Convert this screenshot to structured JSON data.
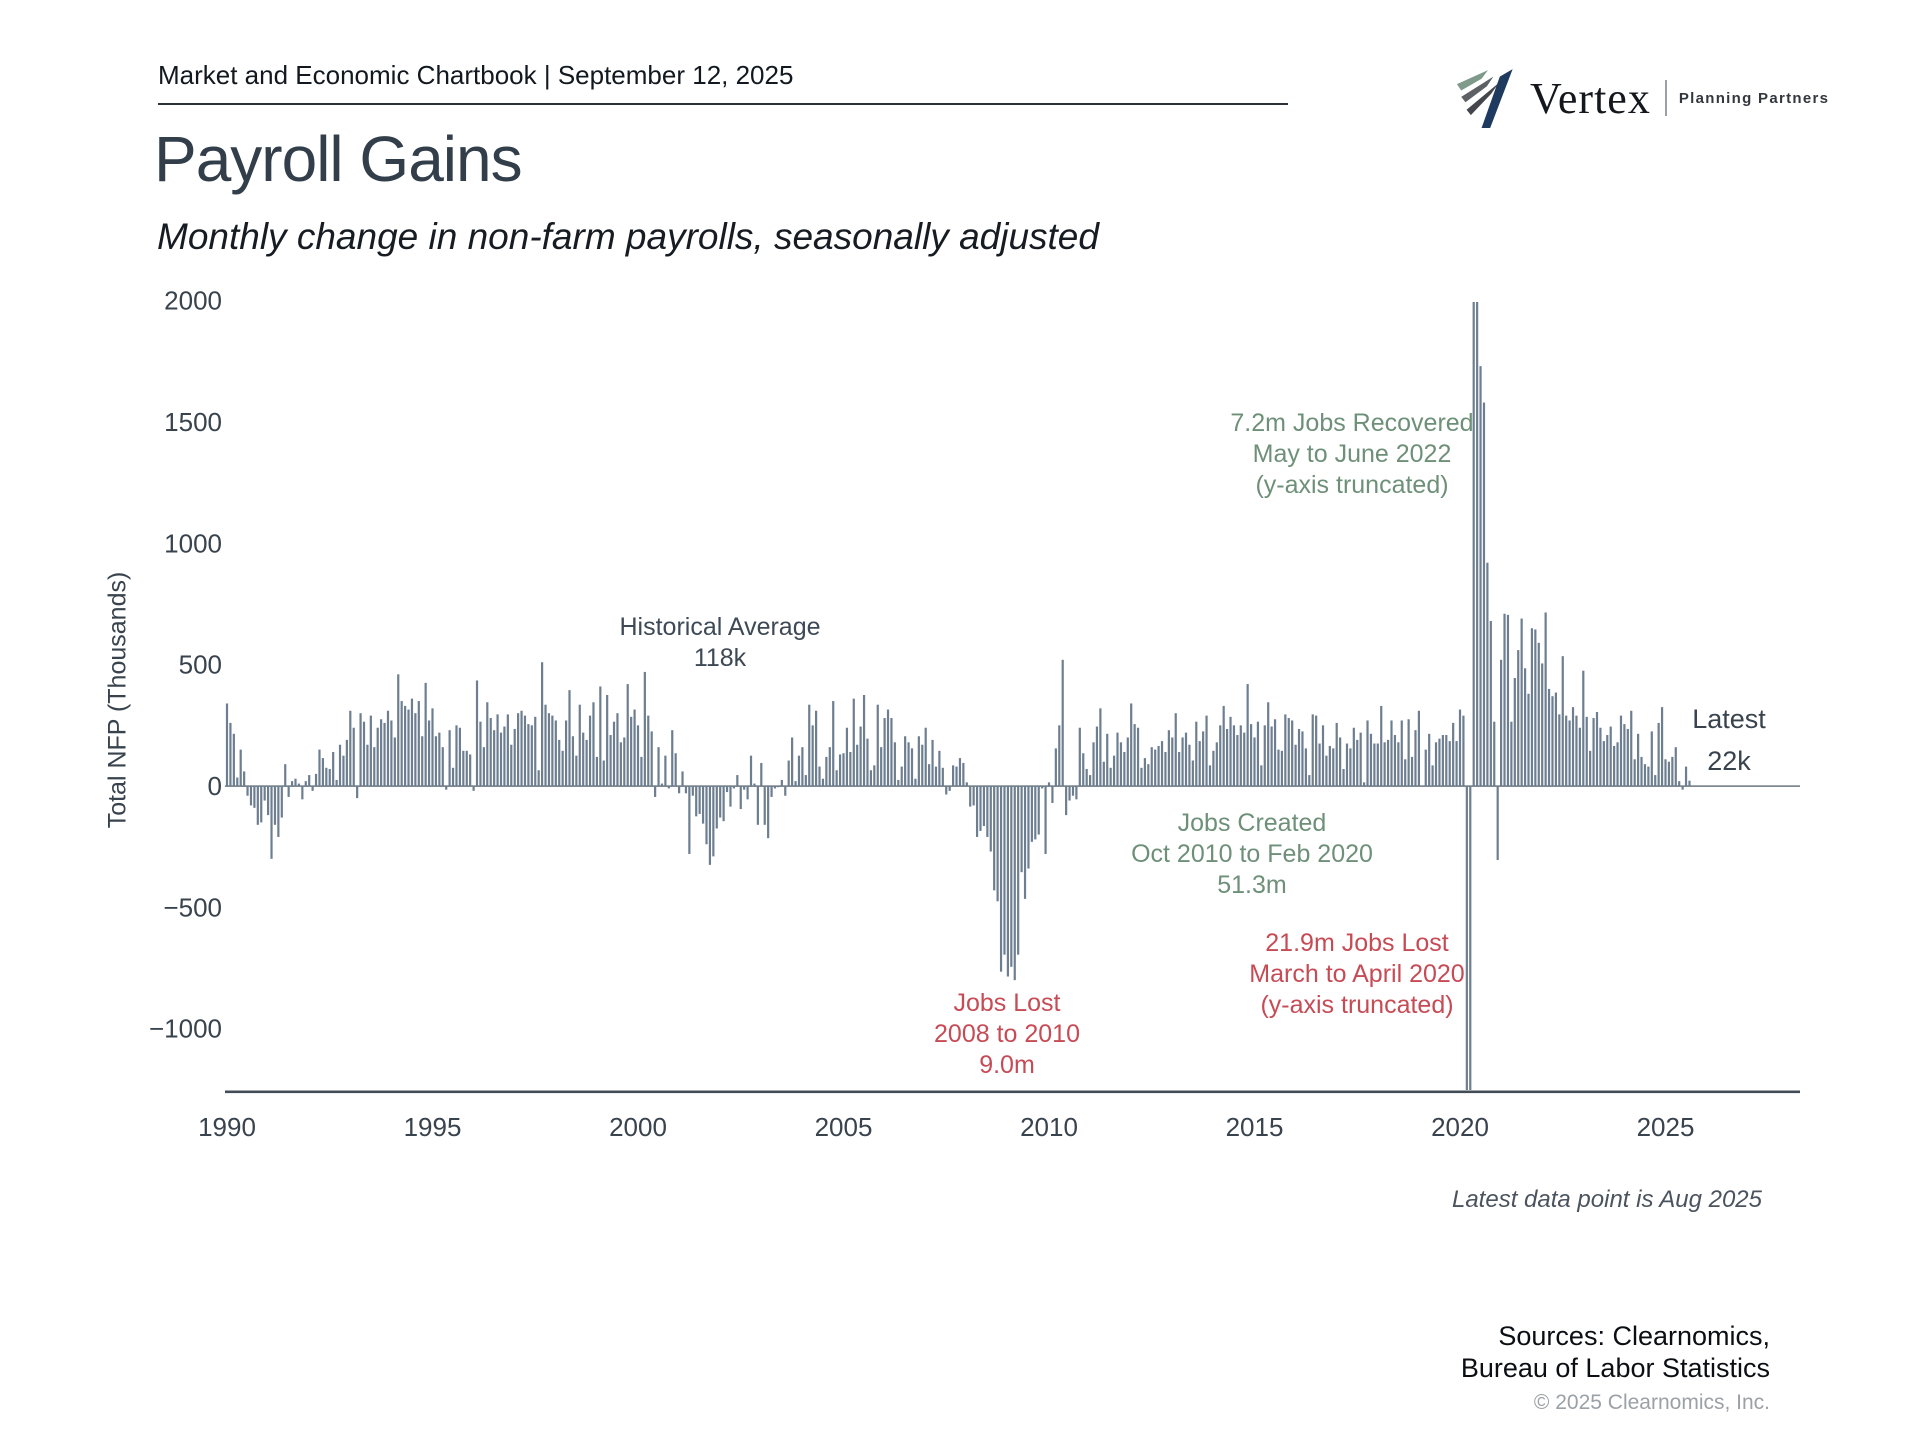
{
  "header": {
    "chartbook_label": "Market and Economic Chartbook | September 12, 2025"
  },
  "logo": {
    "brand": "Vertex",
    "tagline": "Planning Partners"
  },
  "title": "Payroll Gains",
  "subtitle": "Monthly change in non-farm payrolls, seasonally adjusted",
  "annotations": {
    "historical_average": {
      "lines": [
        "Historical Average",
        "118k"
      ]
    },
    "jobs_recovered": {
      "lines": [
        "7.2m Jobs Recovered",
        "May to June 2022",
        "(y-axis truncated)"
      ]
    },
    "latest": {
      "lines": [
        "Latest",
        "22k"
      ]
    },
    "jobs_created": {
      "lines": [
        "Jobs Created",
        "Oct 2010 to Feb 2020",
        "51.3m"
      ]
    },
    "jobs_lost_2020": {
      "lines": [
        "21.9m Jobs Lost",
        "March to April 2020",
        "(y-axis truncated)"
      ]
    },
    "jobs_lost_2008": {
      "lines": [
        "Jobs Lost",
        "2008 to 2010",
        "9.0m"
      ]
    }
  },
  "footer": {
    "latest_note": "Latest data point is Aug 2025",
    "sources_line1": "Sources: Clearnomics,",
    "sources_line2": "Bureau of Labor Statistics",
    "copyright": "© 2025 Clearnomics, Inc."
  },
  "chart_data": {
    "type": "bar",
    "title": "Payroll Gains",
    "subtitle": "Monthly change in non-farm payrolls, seasonally adjusted",
    "ylabel": "Total NFP (Thousands)",
    "x_start_month": "1990-01",
    "x_end_month": "2025-08",
    "x_tick_labels": [
      "1990",
      "1995",
      "2000",
      "2005",
      "2010",
      "2015",
      "2020",
      "2025"
    ],
    "y_tick_labels": [
      "2000",
      "1500",
      "1000",
      "500",
      "0",
      "−500",
      "−1000"
    ],
    "y_tick_values": [
      2000,
      1500,
      1000,
      500,
      0,
      -500,
      -1000
    ],
    "ylim_labeled": [
      -1000,
      2000
    ],
    "y_axis_truncated": true,
    "grid": false,
    "legend": "none",
    "bar_color": "#6d7e90",
    "historical_average_k": 118,
    "latest_value_k": 22,
    "values_unit": "thousands of jobs, monthly change",
    "values": [
      340,
      260,
      215,
      35,
      150,
      60,
      -40,
      -80,
      -90,
      -160,
      -150,
      -60,
      -120,
      -300,
      -160,
      -210,
      -130,
      90,
      -45,
      20,
      30,
      10,
      -55,
      20,
      45,
      -20,
      50,
      150,
      115,
      75,
      70,
      140,
      25,
      170,
      125,
      190,
      310,
      240,
      -50,
      300,
      265,
      170,
      290,
      160,
      240,
      275,
      260,
      310,
      270,
      200,
      460,
      350,
      330,
      315,
      360,
      300,
      350,
      205,
      425,
      270,
      320,
      205,
      220,
      160,
      -15,
      230,
      75,
      250,
      240,
      145,
      145,
      130,
      -20,
      435,
      265,
      160,
      345,
      280,
      230,
      295,
      220,
      245,
      295,
      170,
      235,
      300,
      310,
      290,
      255,
      250,
      285,
      65,
      510,
      335,
      300,
      290,
      270,
      190,
      145,
      270,
      395,
      205,
      125,
      335,
      220,
      190,
      290,
      345,
      120,
      410,
      105,
      375,
      210,
      265,
      300,
      180,
      200,
      420,
      285,
      315,
      250,
      120,
      470,
      290,
      225,
      -45,
      160,
      10,
      125,
      -10,
      230,
      135,
      -30,
      60,
      -30,
      -280,
      -40,
      -125,
      -115,
      -155,
      -240,
      -325,
      -290,
      -175,
      -130,
      -145,
      -25,
      -85,
      -10,
      45,
      -95,
      -15,
      -55,
      125,
      10,
      -160,
      95,
      -160,
      -215,
      -45,
      -10,
      -5,
      25,
      -40,
      105,
      200,
      20,
      125,
      160,
      45,
      335,
      250,
      310,
      80,
      30,
      120,
      160,
      350,
      65,
      130,
      135,
      240,
      140,
      360,
      170,
      245,
      375,
      195,
      65,
      85,
      335,
      160,
      280,
      315,
      280,
      180,
      25,
      80,
      205,
      180,
      155,
      30,
      205,
      170,
      240,
      90,
      190,
      80,
      145,
      75,
      -35,
      -20,
      85,
      80,
      115,
      95,
      15,
      -85,
      -80,
      -210,
      -185,
      -165,
      -210,
      -270,
      -430,
      -475,
      -765,
      -695,
      -785,
      -745,
      -800,
      -695,
      -355,
      -465,
      -340,
      -230,
      -220,
      -200,
      -10,
      -280,
      15,
      -70,
      155,
      250,
      520,
      -120,
      -60,
      -40,
      -55,
      240,
      135,
      70,
      45,
      180,
      245,
      320,
      100,
      215,
      75,
      125,
      220,
      180,
      140,
      200,
      340,
      255,
      240,
      75,
      115,
      90,
      160,
      150,
      165,
      185,
      140,
      230,
      200,
      300,
      140,
      200,
      220,
      170,
      105,
      265,
      185,
      225,
      290,
      85,
      145,
      180,
      250,
      330,
      235,
      285,
      250,
      210,
      250,
      220,
      420,
      255,
      200,
      265,
      85,
      250,
      345,
      245,
      275,
      150,
      145,
      295,
      280,
      270,
      170,
      235,
      225,
      155,
      45,
      295,
      290,
      175,
      250,
      125,
      165,
      155,
      260,
      200,
      70,
      175,
      155,
      240,
      190,
      220,
      15,
      270,
      215,
      175,
      175,
      330,
      180,
      190,
      270,
      210,
      180,
      270,
      110,
      275,
      120,
      230,
      310,
      0,
      150,
      215,
      85,
      180,
      195,
      210,
      210,
      185,
      260,
      185,
      315,
      290,
      -1400,
      -20500,
      2800,
      4800,
      1730,
      1580,
      920,
      680,
      265,
      -305,
      520,
      710,
      705,
      265,
      445,
      560,
      690,
      485,
      380,
      650,
      645,
      590,
      505,
      715,
      400,
      370,
      385,
      295,
      535,
      290,
      270,
      325,
      290,
      240,
      475,
      285,
      145,
      280,
      305,
      240,
      185,
      210,
      245,
      165,
      180,
      290,
      255,
      235,
      310,
      110,
      215,
      120,
      90,
      80,
      225,
      45,
      260,
      325,
      110,
      100,
      120,
      160,
      20,
      -15,
      80,
      22
    ]
  }
}
